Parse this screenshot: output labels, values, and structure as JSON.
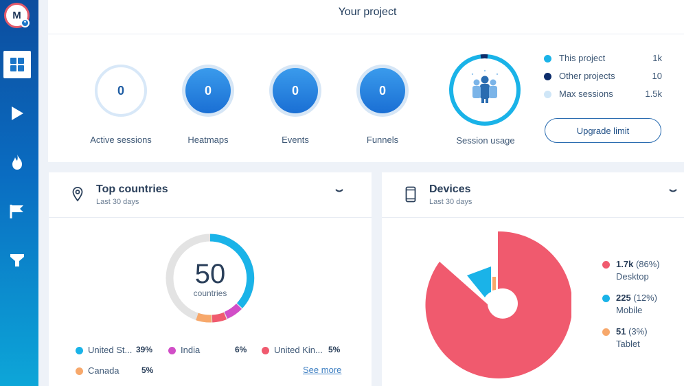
{
  "sidebar": {
    "avatar_initial": "M",
    "items": [
      {
        "icon": "dashboard-icon",
        "active": true
      },
      {
        "icon": "play-icon",
        "active": false
      },
      {
        "icon": "flame-icon",
        "active": false
      },
      {
        "icon": "flag-icon",
        "active": false
      },
      {
        "icon": "funnel-icon",
        "active": false
      }
    ]
  },
  "project": {
    "title": "Your project",
    "metrics": [
      {
        "label": "Active sessions",
        "value": "0"
      },
      {
        "label": "Heatmaps",
        "value": "0"
      },
      {
        "label": "Events",
        "value": "0"
      },
      {
        "label": "Funnels",
        "value": "0"
      }
    ],
    "session_usage": {
      "label": "Session usage",
      "legend": [
        {
          "name": "This project",
          "value": "1k",
          "color": "#1ab3e8"
        },
        {
          "name": "Other projects",
          "value": "10",
          "color": "#0d2d6b"
        },
        {
          "name": "Max sessions",
          "value": "1.5k",
          "color": "#cfe6f7"
        }
      ],
      "upgrade_label": "Upgrade limit"
    }
  },
  "top_countries": {
    "title": "Top countries",
    "subtitle": "Last 30 days",
    "total": "50",
    "unit": "countries",
    "items": [
      {
        "name": "United St...",
        "pct": "39%",
        "color": "#1ab3e8"
      },
      {
        "name": "India",
        "pct": "6%",
        "color": "#d14ec7"
      },
      {
        "name": "United Kin...",
        "pct": "5%",
        "color": "#f05a6e"
      },
      {
        "name": "Canada",
        "pct": "5%",
        "color": "#f7a86b"
      }
    ],
    "see_more": "See more"
  },
  "devices": {
    "title": "Devices",
    "subtitle": "Last 30 days",
    "items": [
      {
        "value": "1.7k",
        "pct": "(86%)",
        "name": "Desktop",
        "color": "#f05a6e"
      },
      {
        "value": "225",
        "pct": "(12%)",
        "name": "Mobile",
        "color": "#1ab3e8"
      },
      {
        "value": "51",
        "pct": "(3%)",
        "name": "Tablet",
        "color": "#f7a86b"
      }
    ]
  }
}
